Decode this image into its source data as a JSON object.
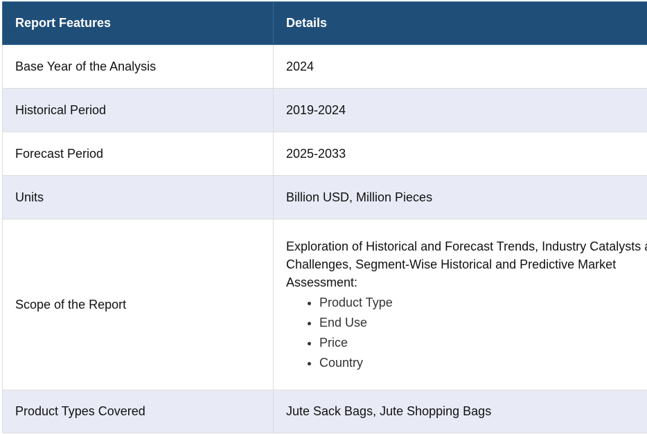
{
  "header": {
    "col1": "Report Features",
    "col2": "Details"
  },
  "rows": [
    {
      "feature": "Base Year of the Analysis",
      "detail": "2024"
    },
    {
      "feature": "Historical Period",
      "detail": "2019-2024"
    },
    {
      "feature": "Forecast Period",
      "detail": "2025-2033"
    },
    {
      "feature": "Units",
      "detail": "Billion USD, Million Pieces"
    },
    {
      "feature": "Scope of the Report",
      "detail": "Exploration of Historical and Forecast Trends, Industry Catalysts and Challenges, Segment-Wise Historical and Predictive Market Assessment:",
      "items": [
        "Product Type",
        "End Use",
        "Price",
        "Country"
      ]
    },
    {
      "feature": "Product Types Covered",
      "detail": "Jute Sack Bags, Jute Shopping Bags"
    }
  ],
  "colors": {
    "header_bg": "#1f4e79",
    "alt_row_bg": "#e8ebf6",
    "border": "#dcdcdc"
  }
}
